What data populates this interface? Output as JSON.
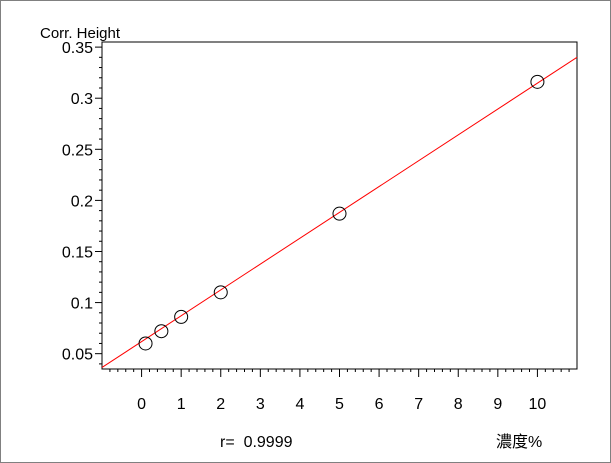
{
  "chart_data": {
    "type": "scatter",
    "title": "",
    "ylabel": "Corr. Height",
    "xlabel": "濃度%",
    "annotation": "r=  0.9999",
    "xlim": [
      -1,
      11
    ],
    "ylim": [
      0.035,
      0.355
    ],
    "x_ticks": [
      0,
      1,
      2,
      3,
      4,
      5,
      6,
      7,
      8,
      9,
      10
    ],
    "y_ticks": [
      0.05,
      0.1,
      0.15,
      0.2,
      0.25,
      0.3,
      0.35
    ],
    "y_tick_labels": [
      "0.05",
      "0.1",
      "0.15",
      "0.2",
      "0.25",
      "0.3",
      "0.35"
    ],
    "points": [
      {
        "x": 0.1,
        "y": 0.06
      },
      {
        "x": 0.5,
        "y": 0.072
      },
      {
        "x": 1,
        "y": 0.086
      },
      {
        "x": 2,
        "y": 0.11
      },
      {
        "x": 5,
        "y": 0.187
      },
      {
        "x": 10,
        "y": 0.316
      }
    ],
    "fit_line": {
      "x": [
        -1,
        11
      ],
      "y": [
        0.0365,
        0.34
      ],
      "color": "#ff0000"
    },
    "marker": "open-circle",
    "grid": false
  }
}
